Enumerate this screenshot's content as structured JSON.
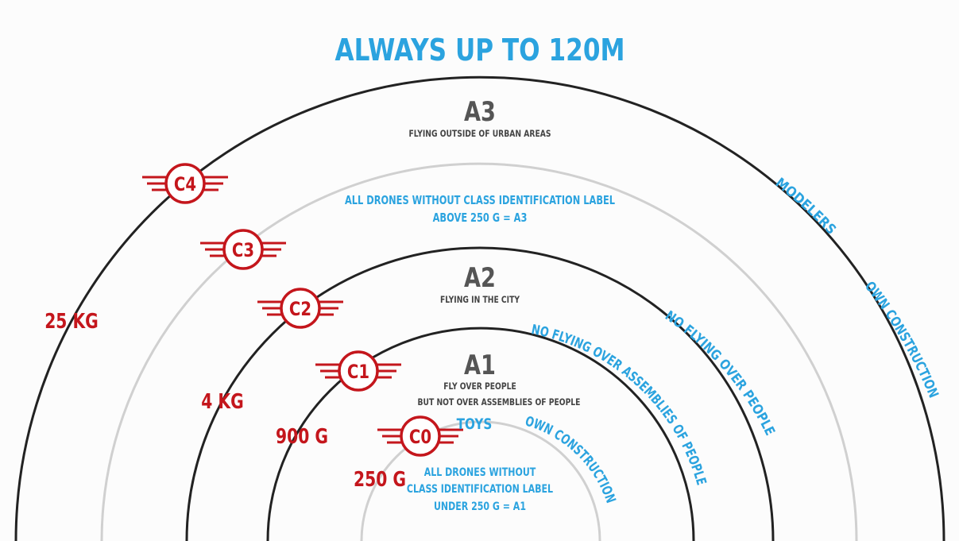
{
  "title": "ALWAYS UP TO 120M",
  "categories": {
    "a3": {
      "name": "A3",
      "description": "FLYING OUTSIDE OF URBAN AREAS"
    },
    "a2": {
      "name": "A2",
      "description": "FLYING IN THE CITY"
    },
    "a1": {
      "name": "A1",
      "description_line1": "FLY OVER PEOPLE",
      "description_line2": "BUT NOT OVER ASSEMBLIES OF PEOPLE"
    }
  },
  "notes": {
    "above_line1": "ALL DRONES WITHOUT CLASS IDENTIFICATION LABEL",
    "above_line2": "ABOVE 250 G = A3",
    "under_line1": "ALL DRONES WITHOUT",
    "under_line2": "CLASS IDENTIFICATION LABEL",
    "under_line3": "UNDER 250 G = A1"
  },
  "weights": {
    "w25kg": "25 KG",
    "w4kg": "4 KG",
    "w900g": "900 G",
    "w250g": "250 G"
  },
  "classes": {
    "c4": "C4",
    "c3": "C3",
    "c2": "C2",
    "c1": "C1",
    "c0": "C0"
  },
  "arc_labels": {
    "modelers": "MODELERS",
    "own_construction_outer": "OWN CONSTRUCTION",
    "no_flying_over_people": "NO FLYING OVER PEOPLE",
    "no_flying_over_assemblies": "NO FLYING OVER ASSEMBLIES OF PEOPLE",
    "toys": "TOYS",
    "own_construction_inner": "OWN CONSTRUCTION"
  },
  "colors": {
    "blue": "#2ba3df",
    "red": "#c4161c",
    "dark": "#222222",
    "light_gray": "#d0d0d0"
  }
}
